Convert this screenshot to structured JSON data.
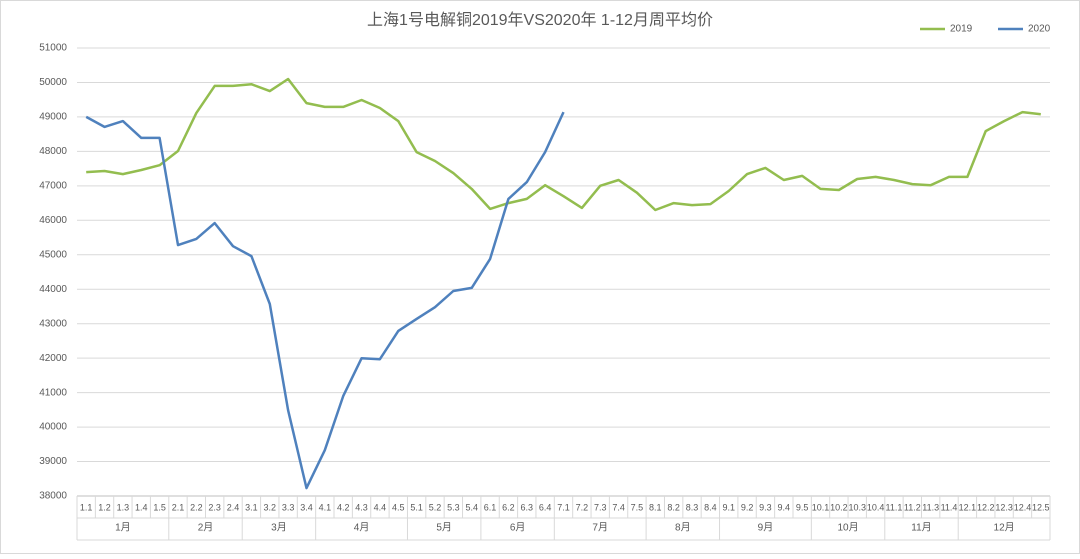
{
  "chart_data": {
    "type": "line",
    "title": "上海1号电解铜2019年VS2020年  1-12月周平均价",
    "categories": [
      "1.1",
      "1.2",
      "1.3",
      "1.4",
      "1.5",
      "2.1",
      "2.2",
      "2.3",
      "2.4",
      "3.1",
      "3.2",
      "3.3",
      "3.4",
      "4.1",
      "4.2",
      "4.3",
      "4.4",
      "4.5",
      "5.1",
      "5.2",
      "5.3",
      "5.4",
      "6.1",
      "6.2",
      "6.3",
      "6.4",
      "7.1",
      "7.2",
      "7.3",
      "7.4",
      "7.5",
      "8.1",
      "8.2",
      "8.3",
      "8.4",
      "9.1",
      "9.2",
      "9.3",
      "9.4",
      "9.5",
      "10.1",
      "10.2",
      "10.3",
      "10.4",
      "11.1",
      "11.2",
      "11.3",
      "11.4",
      "12.1",
      "12.2",
      "12.3",
      "12.4",
      "12.5"
    ],
    "month_labels": [
      "1月",
      "2月",
      "3月",
      "4月",
      "5月",
      "6月",
      "7月",
      "8月",
      "9月",
      "10月",
      "11月",
      "12月"
    ],
    "series": [
      {
        "name": "2019",
        "color": "#93bd4f",
        "values": [
          47400,
          47430,
          47340,
          47460,
          47600,
          48010,
          49110,
          49900,
          49900,
          49950,
          49750,
          50100,
          49400,
          49290,
          49290,
          49490,
          49260,
          48880,
          47980,
          47720,
          47370,
          46910,
          46330,
          46500,
          46620,
          47020,
          46700,
          46360,
          47000,
          47170,
          46800,
          46300,
          46500,
          46440,
          46470,
          46850,
          47340,
          47520,
          47170,
          47290,
          46910,
          46880,
          47200,
          47260,
          47170,
          47050,
          47020,
          47260,
          47260,
          48590,
          48880,
          49140,
          49080
        ]
      },
      {
        "name": "2020",
        "color": "#4f81bd",
        "values": [
          49000,
          48710,
          48880,
          48390,
          48390,
          45280,
          45460,
          45920,
          45250,
          44960,
          43570,
          40490,
          38230,
          39330,
          40900,
          42000,
          41970,
          42790,
          43140,
          43480,
          43950,
          44040,
          44880,
          46620,
          47110,
          47980,
          49140,
          null,
          null,
          null,
          null,
          null,
          null,
          null,
          null,
          null,
          null,
          null,
          null,
          null,
          null,
          null,
          null,
          null,
          null,
          null,
          null,
          null,
          null,
          null,
          null,
          null,
          null
        ]
      }
    ],
    "ylim": [
      38000,
      51000
    ],
    "yticks": [
      38000,
      39000,
      40000,
      41000,
      42000,
      43000,
      44000,
      45000,
      46000,
      47000,
      48000,
      49000,
      50000,
      51000
    ],
    "grid": true,
    "legend": "top-right"
  }
}
